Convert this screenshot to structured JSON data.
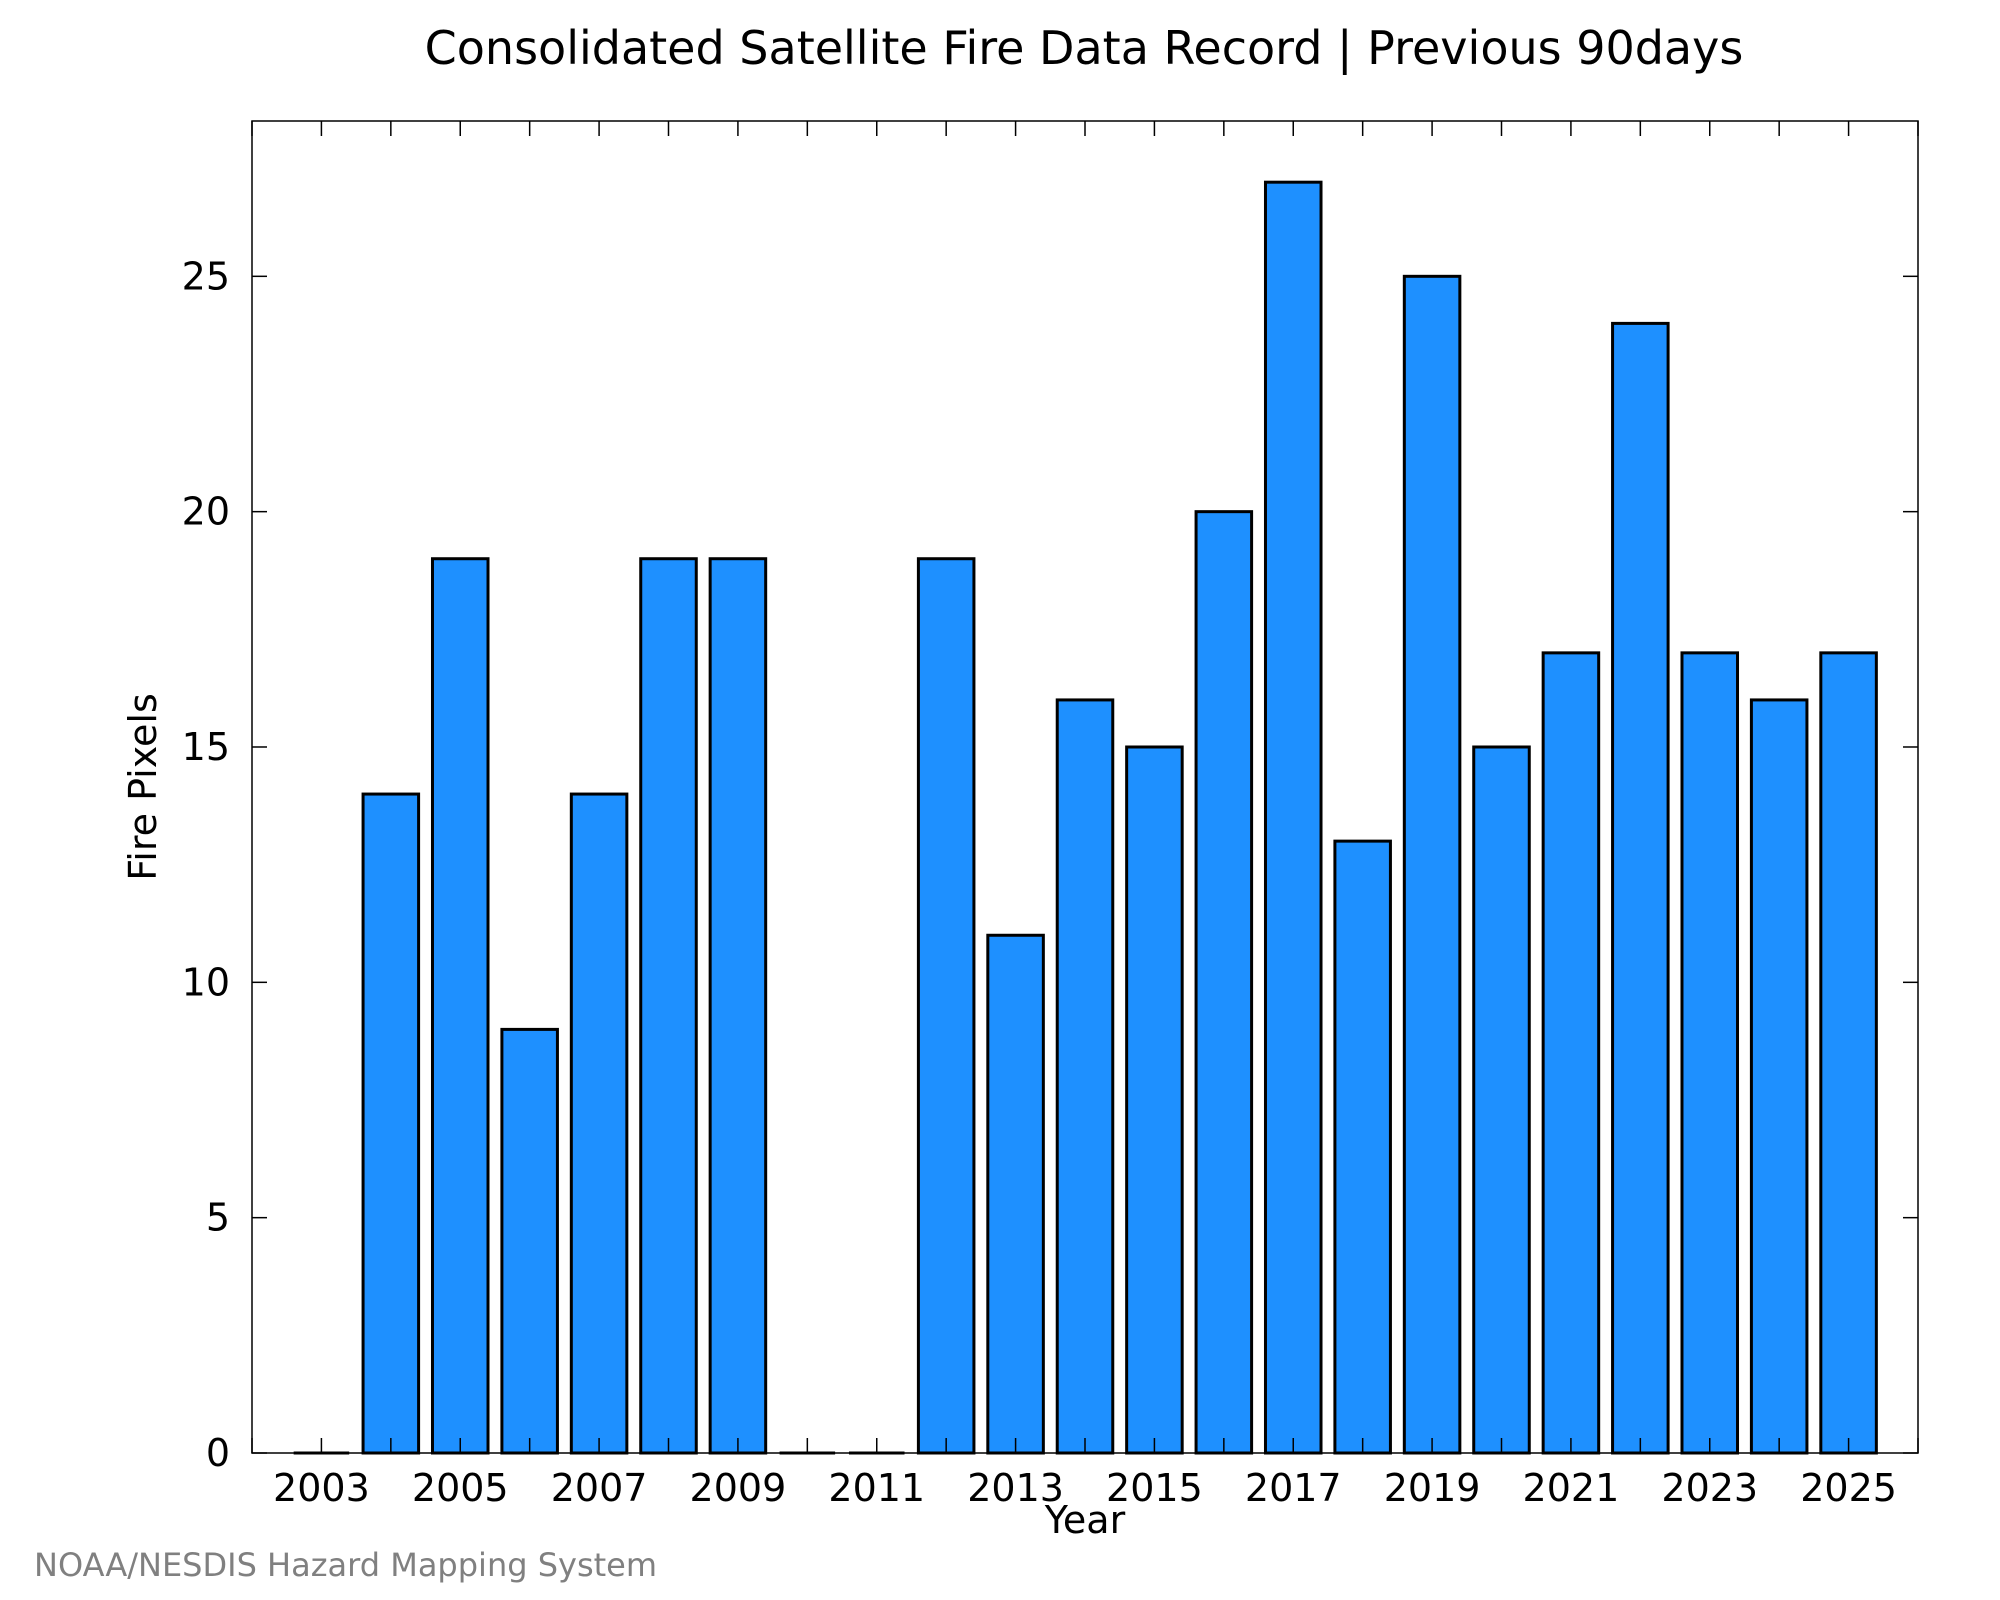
{
  "chart_data": {
    "type": "bar",
    "title": "Consolidated Satellite Fire Data Record | Previous 90days",
    "xlabel": "Year",
    "ylabel": "Fire Pixels",
    "categories": [
      "2003",
      "2004",
      "2005",
      "2006",
      "2007",
      "2008",
      "2009",
      "2010",
      "2011",
      "2012",
      "2013",
      "2014",
      "2015",
      "2016",
      "2017",
      "2018",
      "2019",
      "2020",
      "2021",
      "2022",
      "2023",
      "2024",
      "2025"
    ],
    "values": [
      0,
      14,
      19,
      9,
      14,
      19,
      19,
      0,
      0,
      19,
      11,
      16,
      15,
      20,
      27,
      13,
      25,
      15,
      17,
      24,
      17,
      16,
      17
    ],
    "x_tick_labels": [
      "2003",
      "2005",
      "2007",
      "2009",
      "2011",
      "2013",
      "2015",
      "2017",
      "2019",
      "2021",
      "2023",
      "2025"
    ],
    "y_ticks": [
      0,
      5,
      10,
      15,
      20,
      25
    ],
    "y_tick_labels": [
      "0",
      "5",
      "10",
      "15",
      "20",
      "25"
    ],
    "ylim": [
      0,
      28.3
    ],
    "xlim": [
      2002,
      2026
    ],
    "bar_color": "#1e90ff",
    "bar_edge_color": "#000000",
    "grid": false,
    "legend": "none"
  },
  "credit": "NOAA/NESDIS Hazard Mapping System"
}
